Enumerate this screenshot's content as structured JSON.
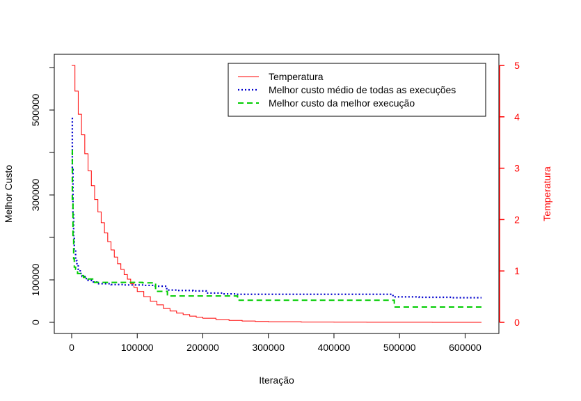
{
  "chart_data": {
    "type": "line",
    "xlabel": "Iteração",
    "ylabel": "Melhor Custo",
    "ylabel_right": "Temperatura",
    "xlim": [
      0,
      625000
    ],
    "ylim": [
      0,
      605000
    ],
    "ylim_right": [
      0,
      5
    ],
    "x_ticks": [
      0,
      100000,
      200000,
      300000,
      400000,
      500000,
      600000
    ],
    "y_ticks": [
      0,
      100000,
      300000,
      500000
    ],
    "y_ticks_unlabeled": [
      200000,
      400000,
      600000
    ],
    "y_right_ticks": [
      0,
      1,
      2,
      3,
      4,
      5
    ],
    "grid": false,
    "legend_position": "top-right",
    "colors": {
      "temperature": "#ff0000",
      "mean_cost": "#0000cc",
      "best_cost": "#00cc00",
      "right_axis": "#ff0000"
    },
    "series": [
      {
        "name": "Temperatura",
        "axis": "right",
        "style": "solid-step",
        "x": [
          0,
          5000,
          10000,
          15000,
          20000,
          25000,
          30000,
          35000,
          40000,
          45000,
          50000,
          55000,
          60000,
          65000,
          70000,
          75000,
          80000,
          85000,
          90000,
          95000,
          100000,
          110000,
          120000,
          130000,
          140000,
          150000,
          160000,
          170000,
          180000,
          190000,
          200000,
          220000,
          240000,
          260000,
          280000,
          300000,
          350000,
          400000,
          450000,
          500000,
          550000,
          600000,
          625000
        ],
        "values": [
          5.0,
          4.5,
          4.05,
          3.65,
          3.28,
          2.95,
          2.66,
          2.39,
          2.15,
          1.94,
          1.74,
          1.57,
          1.41,
          1.27,
          1.14,
          1.03,
          0.93,
          0.84,
          0.75,
          0.68,
          0.6,
          0.5,
          0.41,
          0.34,
          0.27,
          0.22,
          0.18,
          0.15,
          0.12,
          0.1,
          0.08,
          0.055,
          0.037,
          0.025,
          0.017,
          0.012,
          0.005,
          0.003,
          0.002,
          0.001,
          0.0008,
          0.0005,
          0.0005
        ]
      },
      {
        "name": "Melhor custo médio de todas as execuções",
        "axis": "left",
        "style": "dotted-step",
        "x": [
          0,
          1000,
          2000,
          3000,
          4000,
          6000,
          8000,
          10000,
          13000,
          16000,
          20000,
          25000,
          30000,
          40000,
          60000,
          80000,
          110000,
          125000,
          145000,
          160000,
          185000,
          205000,
          230000,
          252000,
          300000,
          350000,
          400000,
          450000,
          490000,
          530000,
          580000,
          625000
        ],
        "values": [
          480000,
          360000,
          260000,
          200000,
          170000,
          145000,
          135000,
          125000,
          115000,
          108000,
          103000,
          99000,
          95000,
          91000,
          89000,
          88000,
          87000,
          85000,
          76000,
          75000,
          74000,
          69000,
          67000,
          66000,
          66000,
          66000,
          66000,
          66000,
          60000,
          59000,
          58000,
          58000
        ]
      },
      {
        "name": "Melhor custo da melhor execução",
        "axis": "left",
        "style": "dashed-step",
        "x": [
          0,
          1000,
          2000,
          3000,
          4000,
          6000,
          9000,
          13000,
          18000,
          25000,
          35000,
          50000,
          75000,
          90000,
          108000,
          128000,
          146000,
          180000,
          200000,
          230000,
          253000,
          300000,
          400000,
          450000,
          492000,
          550000,
          625000
        ],
        "values": [
          405000,
          290000,
          200000,
          150000,
          130000,
          125000,
          115000,
          110000,
          106000,
          102000,
          94000,
          94000,
          94000,
          94000,
          93000,
          73000,
          62000,
          62000,
          62000,
          62000,
          52000,
          52000,
          52000,
          52000,
          36000,
          36000,
          36000
        ]
      }
    ]
  }
}
